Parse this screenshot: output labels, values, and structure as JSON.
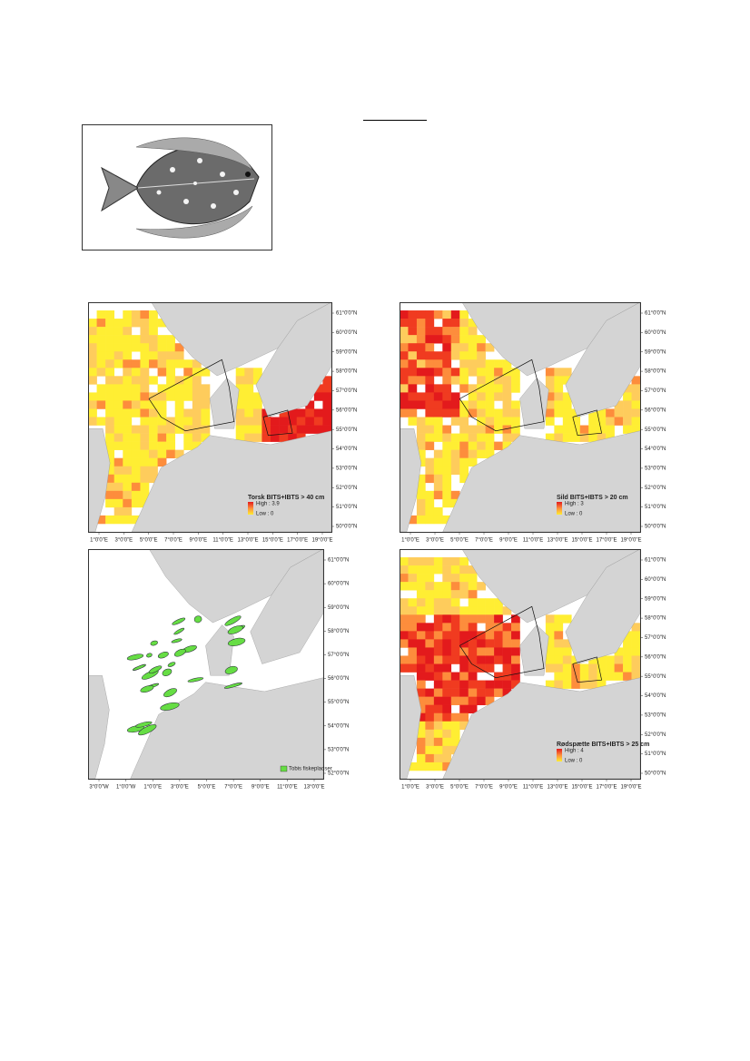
{
  "maps": [
    {
      "lat_labels": [
        "61°0'0\"N",
        "60°0'0\"N",
        "59°0'0\"N",
        "58°0'0\"N",
        "57°0'0\"N",
        "56°0'0\"N",
        "55°0'0\"N",
        "54°0'0\"N",
        "53°0'0\"N",
        "52°0'0\"N",
        "51°0'0\"N",
        "50°0'0\"N"
      ],
      "lon_labels": [
        "1°0'0\"E",
        "3°0'0\"E",
        "5°0'0\"E",
        "7°0'0\"E",
        "9°0'0\"E",
        "11°0'0\"E",
        "13°0'0\"E",
        "15°0'0\"E",
        "17°0'0\"E",
        "19°0'0\"E"
      ],
      "legend": {
        "title": "Torsk BITS+IBTS > 40 cm",
        "high": "High : 3.9",
        "low": "Low : 0"
      }
    },
    {
      "lat_labels": [
        "61°0'0\"N",
        "60°0'0\"N",
        "59°0'0\"N",
        "58°0'0\"N",
        "57°0'0\"N",
        "56°0'0\"N",
        "55°0'0\"N",
        "54°0'0\"N",
        "53°0'0\"N",
        "52°0'0\"N",
        "51°0'0\"N",
        "50°0'0\"N"
      ],
      "lon_labels": [
        "1°0'0\"E",
        "3°0'0\"E",
        "5°0'0\"E",
        "7°0'0\"E",
        "9°0'0\"E",
        "11°0'0\"E",
        "13°0'0\"E",
        "15°0'0\"E",
        "17°0'0\"E",
        "19°0'0\"E"
      ],
      "legend": {
        "title": "Sild BITS+IBTS > 20 cm",
        "high": "High : 3",
        "low": "Low : 0"
      }
    },
    {
      "lat_labels": [
        "61°0'0\"N",
        "60°0'0\"N",
        "59°0'0\"N",
        "58°0'0\"N",
        "57°0'0\"N",
        "56°0'0\"N",
        "55°0'0\"N",
        "54°0'0\"N",
        "53°0'0\"N",
        "52°0'0\"N"
      ],
      "lon_labels": [
        "3°0'0\"W",
        "1°0'0\"W",
        "1°0'0\"E",
        "3°0'0\"E",
        "5°0'0\"E",
        "7°0'0\"E",
        "9°0'0\"E",
        "11°0'0\"E",
        "13°0'0\"E"
      ],
      "legend": {
        "label": "Tobis fiskepladser"
      }
    },
    {
      "lat_labels": [
        "61°0'0\"N",
        "60°0'0\"N",
        "59°0'0\"N",
        "58°0'0\"N",
        "57°0'0\"N",
        "56°0'0\"N",
        "55°0'0\"N",
        "54°0'0\"N",
        "53°0'0\"N",
        "52°0'0\"N",
        "51°0'0\"N",
        "50°0'0\"N"
      ],
      "lon_labels": [
        "1°0'0\"E",
        "3°0'0\"E",
        "5°0'0\"E",
        "7°0'0\"E",
        "9°0'0\"E",
        "11°0'0\"E",
        "13°0'0\"E",
        "15°0'0\"E",
        "17°0'0\"E",
        "19°0'0\"E"
      ],
      "legend": {
        "title": "Rødspætte BITS+IBTS > 25 cm",
        "high": "High : 4",
        "low": "Low : 0"
      }
    }
  ]
}
